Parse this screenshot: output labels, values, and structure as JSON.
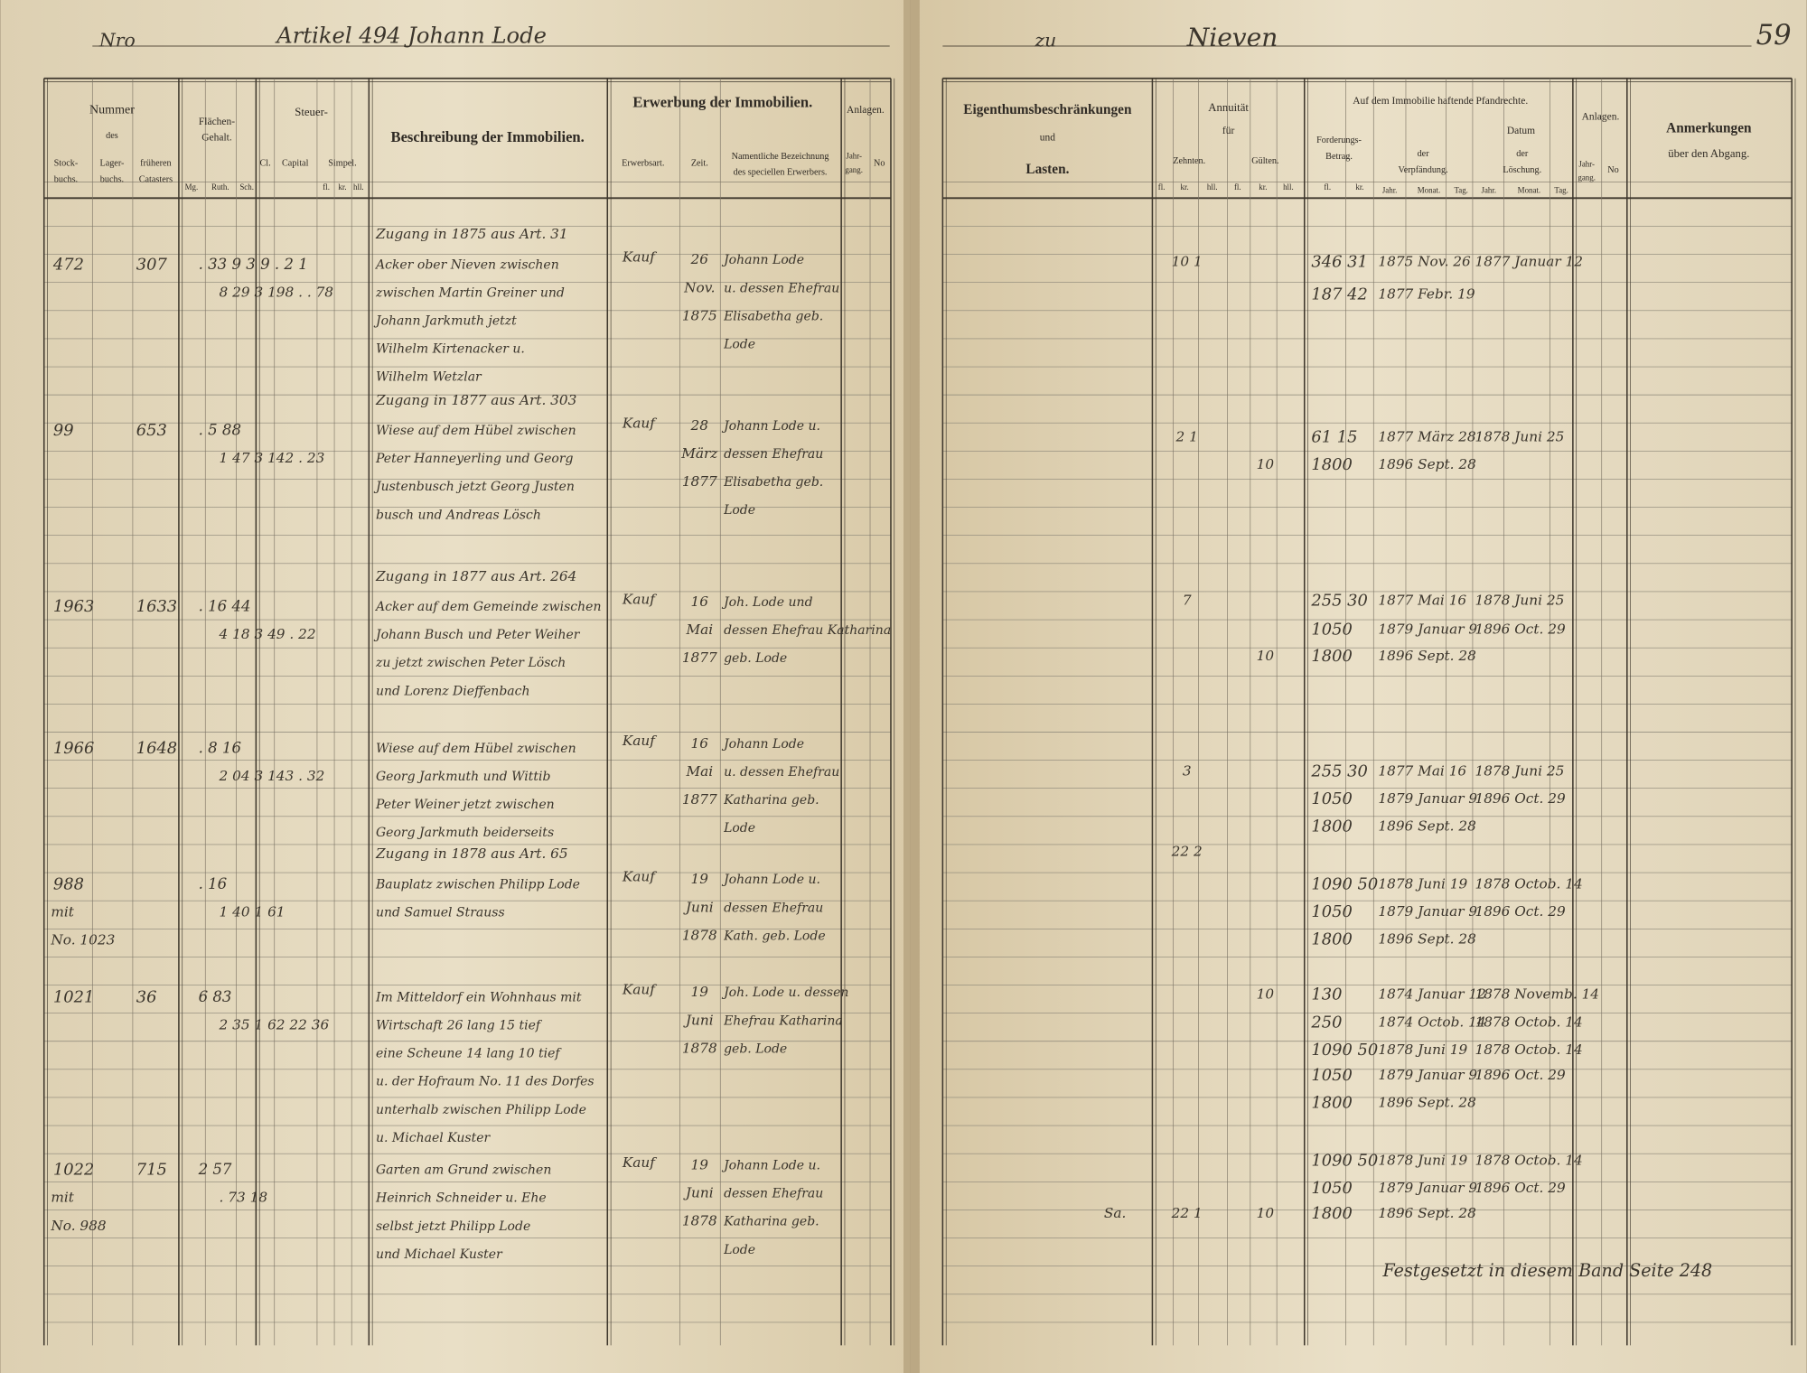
{
  "header": {
    "left_prefix": "Nro",
    "article": "Artikel 494 Johann Lode",
    "right_prefix": "zu",
    "place": "Nieven",
    "page_number": "59"
  },
  "left_headers": [
    "Nummer",
    "des",
    "Stock-",
    "buchs.",
    "Lager-",
    "buchs.",
    "früheren",
    "Catasters",
    "Flächen-",
    "Gehalt.",
    "Mg.",
    "Ruth.",
    "Sch.",
    "Steuer-",
    "Cl.",
    "Capital",
    "Simpel.",
    "fl.",
    "kr.",
    "hll.",
    "Beschreibung der Immobilien.",
    "Erwerbung der Immobilien.",
    "Erwerbsart.",
    "Zeit.",
    "Namentliche Bezeichnung",
    "des speciellen Erwerbers.",
    "Anlagen.",
    "Jahr-",
    "gang.",
    "No"
  ],
  "right_headers": [
    "Eigenthumsbeschränkungen",
    "und",
    "Lasten.",
    "Annuität",
    "für",
    "Zehnten.",
    "Gülten.",
    "fl.",
    "kr.",
    "hll.",
    "fl.",
    "kr.",
    "hll.",
    "Auf dem Immobilie haftende Pfandrechte.",
    "Forderungs-",
    "Betrag.",
    "Datum",
    "der",
    "Verpfändung.",
    "der",
    "Löschung.",
    "fl.",
    "kr.",
    "Jahr.",
    "Monat.",
    "Tag.",
    "Jahr.",
    "Monat.",
    "Tag.",
    "Anlagen.",
    "Jahr-",
    "gang.",
    "No",
    "Anmerkungen",
    "über den Abgang."
  ],
  "entries": [
    {
      "zugang": "Zugang in 1875 aus Art. 31",
      "stock": "472",
      "lager": "307",
      "row1": ". 33 9  3  9 .  2 1",
      "row2": "8 29  3  198 . . 78",
      "description": [
        "Acker ober Nieven zwischen",
        "zwischen Martin Greiner und",
        "Johann Jarkmuth jetzt",
        "Wilhelm Kirtenacker u.",
        "Wilhelm Wetzlar"
      ],
      "erwerbsart": "Kauf",
      "zeit": [
        "26",
        "Nov.",
        "1875"
      ],
      "erwerber": [
        "Johann Lode",
        "u. dessen Ehefrau",
        "Elisabetha geb.",
        "Lode"
      ]
    },
    {
      "zugang": "Zugang in 1877 aus Art. 303",
      "stock": "99",
      "lager": "653",
      "row1": ". 5 88",
      "row2": "1 47  3  142 . 23",
      "description": [
        "Wiese auf dem Hübel zwischen",
        "Peter Hanneyerling und Georg",
        "Justenbusch jetzt Georg Justen",
        "busch und Andreas Lösch"
      ],
      "erwerbsart": "Kauf",
      "zeit": [
        "28",
        "März",
        "1877"
      ],
      "erwerber": [
        "Johann Lode u.",
        "dessen Ehefrau",
        "Elisabetha geb.",
        "Lode"
      ]
    },
    {
      "zugang": "Zugang in 1877 aus Art. 264",
      "stock": "1963",
      "lager": "1633",
      "row1": ". 16 44",
      "row2": "4 18  3  49 . 22",
      "description": [
        "Acker auf dem Gemeinde zwischen",
        "Johann Busch und Peter Weiher",
        "zu jetzt zwischen Peter Lösch",
        "und Lorenz Dieffenbach"
      ],
      "erwerbsart": "Kauf",
      "zeit": [
        "16",
        "Mai",
        "1877"
      ],
      "erwerber": [
        "Joh. Lode und",
        "dessen Ehefrau Katharina",
        "geb. Lode"
      ]
    },
    {
      "stock": "1966",
      "lager": "1648",
      "row1": ". 8 16",
      "row2": "2 04  3  143 . 32",
      "description": [
        "Wiese auf dem Hübel zwischen",
        "Georg Jarkmuth und Wittib",
        "Peter Weiner jetzt zwischen",
        "Georg Jarkmuth beiderseits"
      ],
      "erwerbsart": "Kauf",
      "zeit": [
        "16",
        "Mai",
        "1877"
      ],
      "erwerber": [
        "Johann Lode",
        "u. dessen Ehefrau",
        "Katharina geb.",
        "Lode"
      ]
    },
    {
      "zugang": "Zugang in 1878 aus Art. 65",
      "stock": "988",
      "row1": ". 16",
      "row2": "1 40  1 61",
      "side": [
        "mit",
        "No. 1023"
      ],
      "description": [
        "Bauplatz zwischen Philipp Lode",
        "und Samuel Strauss"
      ],
      "erwerbsart": "Kauf",
      "zeit": [
        "19",
        "Juni",
        "1878"
      ],
      "erwerber": [
        "Johann Lode u.",
        "dessen Ehefrau",
        "Kath. geb. Lode",
        ""
      ]
    },
    {
      "stock": "1021",
      "lager": "36",
      "row1": "6 83",
      "row2": "2 35  1  62  22 36",
      "description": [
        "Im Mitteldorf ein Wohnhaus mit",
        "Wirtschaft 26 lang 15 tief",
        "eine Scheune 14 lang 10 tief",
        "u. der Hofraum No. 11 des Dorfes",
        "unterhalb zwischen Philipp Lode",
        "u. Michael Kuster"
      ],
      "erwerbsart": "Kauf",
      "zeit": [
        "19",
        "Juni",
        "1878"
      ],
      "erwerber": [
        "Joh. Lode u. dessen",
        "Ehefrau Katharina",
        "geb. Lode"
      ]
    },
    {
      "stock": "1022",
      "lager": "715",
      "row1": "2 57",
      "row2": ". 73 18",
      "side": [
        "mit",
        "No. 988"
      ],
      "description": [
        "Garten am Grund zwischen",
        "Heinrich Schneider u. Ehe",
        "selbst jetzt Philipp Lode",
        "und Michael Kuster"
      ],
      "erwerbsart": "Kauf",
      "zeit": [
        "19",
        "Juni",
        "1878"
      ],
      "erwerber": [
        "Johann Lode u.",
        "dessen Ehefrau",
        "Katharina geb.",
        "Lode"
      ]
    }
  ],
  "right_rows": [
    {
      "zehnten": "10 1",
      "betrag": "346 31",
      "verpf": "1875 Nov. 26",
      "losch": "1877 Januar 12"
    },
    {
      "betrag": "187 42",
      "verpf": "1877 Febr. 19"
    },
    {
      "zehnten": "2 1",
      "betrag": "61 15",
      "verpf": "1877 März 28",
      "losch": "1878 Juni 25"
    },
    {
      "guelten": "10",
      "betrag": "1800",
      "verpf": "1896 Sept. 28"
    },
    {
      "zehnten": "7",
      "betrag": "255 30",
      "verpf": "1877 Mai 16",
      "losch": "1878 Juni 25"
    },
    {
      "betrag": "1050",
      "verpf": "1879 Januar 9",
      "losch": "1896 Oct. 29"
    },
    {
      "guelten": "10",
      "betrag": "1800",
      "verpf": "1896 Sept. 28"
    },
    {
      "zehnten": "3",
      "betrag": "255 30",
      "verpf": "1877 Mai 16",
      "losch": "1878 Juni 25"
    },
    {
      "betrag": "1050",
      "verpf": "1879 Januar 9",
      "losch": "1896 Oct. 29"
    },
    {
      "betrag": "1800",
      "verpf": "1896 Sept. 28"
    },
    {
      "zehnten": "22 2"
    },
    {
      "betrag": "1090 50",
      "verpf": "1878 Juni 19",
      "losch": "1878 Octob. 14"
    },
    {
      "betrag": "1050",
      "verpf": "1879 Januar 9",
      "losch": "1896 Oct. 29"
    },
    {
      "betrag": "1800",
      "verpf": "1896 Sept. 28"
    },
    {
      "guelten": "10",
      "betrag": "130",
      "verpf": "1874 Januar 12",
      "losch": "1878 Novemb. 14"
    },
    {
      "betrag": "250",
      "verpf": "1874 Octob. 14",
      "losch": "1878 Octob. 14"
    },
    {
      "betrag": "1090 50",
      "verpf": "1878 Juni 19",
      "losch": "1878 Octob. 14"
    },
    {
      "betrag": "1050",
      "verpf": "1879 Januar 9",
      "losch": "1896 Oct. 29"
    },
    {
      "betrag": "1800",
      "verpf": "1896 Sept. 28"
    },
    {
      "betrag": "1090 50",
      "verpf": "1878 Juni 19",
      "losch": "1878 Octob. 14"
    },
    {
      "betrag": "1050",
      "verpf": "1879 Januar 9",
      "losch": "1896 Oct. 29"
    },
    {
      "lasten": "Sa.",
      "zehnten": "22 1",
      "guelten": "10",
      "betrag": "1800",
      "verpf": "1896 Sept. 28"
    }
  ],
  "footer_note": "Festgesetzt in diesem Band Seite 248"
}
